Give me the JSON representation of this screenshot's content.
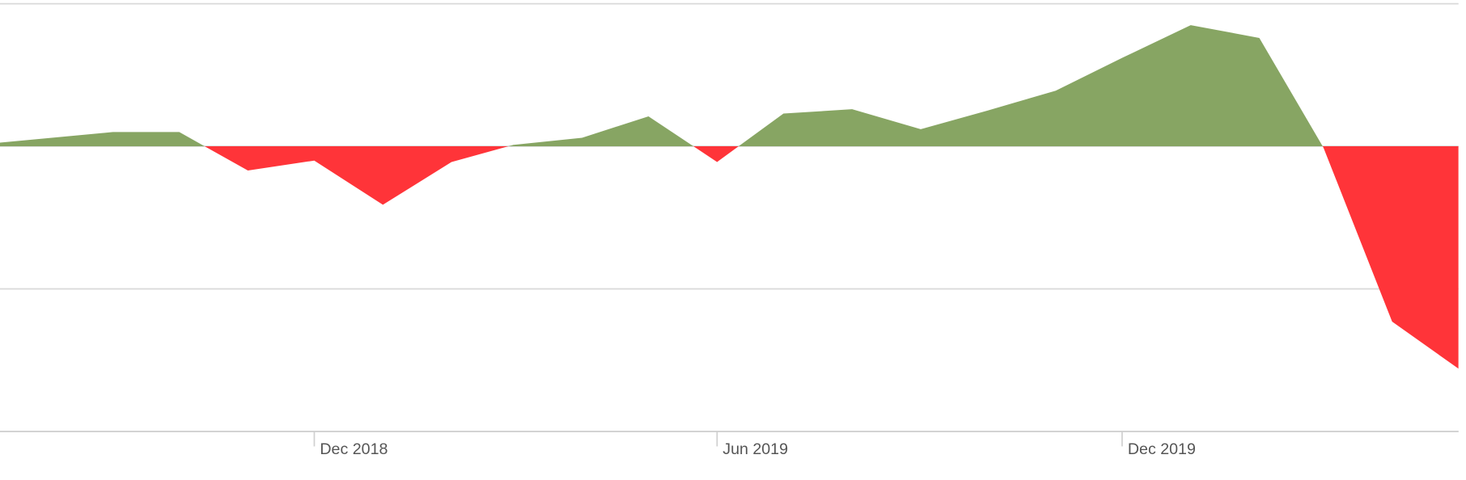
{
  "chart_data": {
    "type": "area",
    "x": [
      "2018-07",
      "2018-08",
      "2018-09",
      "2018-10",
      "2018-11",
      "2018-12",
      "2019-01",
      "2019-02",
      "2019-03",
      "2019-04",
      "2019-05",
      "2019-06",
      "2019-07",
      "2019-08",
      "2019-09",
      "2019-10",
      "2019-11",
      "2019-12",
      "2020-01",
      "2020-02",
      "2020-03",
      "2020-04",
      "2020-05"
    ],
    "values": [
      0.1,
      0.55,
      1.0,
      1.0,
      -1.7,
      -1.0,
      -4.1,
      -1.1,
      0.1,
      0.6,
      2.1,
      -1.1,
      2.3,
      2.6,
      1.2,
      2.5,
      3.9,
      6.2,
      8.5,
      7.6,
      -0.1,
      -12.3,
      -15.6
    ],
    "positive_color": "#87a563",
    "negative_color": "#ff3439",
    "xlim": [
      "2018-07-12",
      "2020-05-01"
    ],
    "xticks": [
      {
        "value": "2018-12",
        "label": "Dec 2018"
      },
      {
        "value": "2019-06",
        "label": "Jun 2019"
      },
      {
        "value": "2019-12",
        "label": "Dec 2019"
      }
    ],
    "ylim": [
      -20,
      10
    ],
    "yticks": [
      -20,
      -10,
      0,
      10
    ],
    "grid": true
  }
}
